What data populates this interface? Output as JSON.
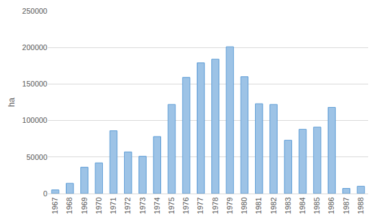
{
  "chart_data": {
    "type": "bar",
    "categories": [
      "1967",
      "1968",
      "1969",
      "1970",
      "1971",
      "1972",
      "1973",
      "1974",
      "1975",
      "1976",
      "1977",
      "1978",
      "1979",
      "1980",
      "1981",
      "1982",
      "1983",
      "1984",
      "1985",
      "1986",
      "1987",
      "1988"
    ],
    "values": [
      5000,
      14000,
      36000,
      42000,
      86000,
      57000,
      51000,
      78000,
      122000,
      159000,
      179000,
      184000,
      201000,
      160000,
      123000,
      122000,
      73000,
      88000,
      91000,
      118000,
      7000,
      10000
    ],
    "color": "#9dc3e6",
    "y_label": "ha",
    "ylim": [
      0,
      250000
    ],
    "yticks": [
      0,
      50000,
      100000,
      150000,
      200000,
      250000
    ],
    "grid": true
  }
}
